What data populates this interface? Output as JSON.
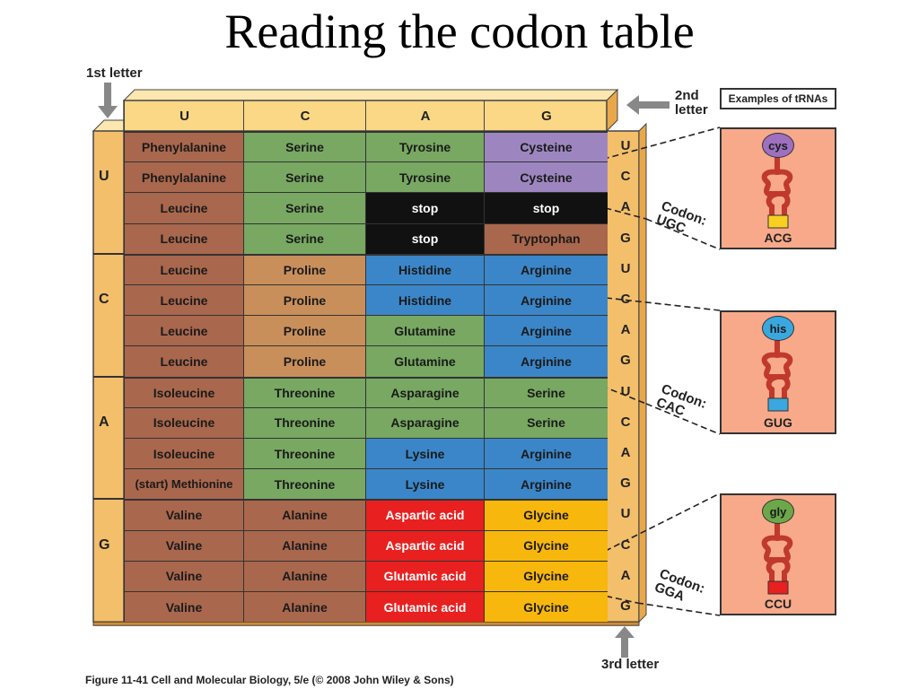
{
  "title": "Reading the codon table",
  "first_letter_label": "1st letter",
  "second_letter_label": "2nd\nletter",
  "third_letter_label": "3rd letter",
  "examples_label": "Examples of tRNAs",
  "caption": "Figure 11-41  Cell and Molecular Biology, 5/e (© 2008 John Wiley & Sons)",
  "second_letters": [
    "U",
    "C",
    "A",
    "G"
  ],
  "first_letters": [
    "U",
    "C",
    "A",
    "G"
  ],
  "third_letters": [
    "U",
    "C",
    "A",
    "G"
  ],
  "colors": {
    "brown": "#a9674d",
    "green": "#78a862",
    "tan": "#c98f5b",
    "blue": "#3b86c8",
    "purple": "#9d86c0",
    "black": "#111111",
    "red": "#e82020",
    "yellow": "#f8b70c",
    "header": "#fbd886",
    "side": "#f3bf6b"
  },
  "rows": [
    [
      {
        "t": "Phenylalanine",
        "c": "brown"
      },
      {
        "t": "Serine",
        "c": "green"
      },
      {
        "t": "Tyrosine",
        "c": "green"
      },
      {
        "t": "Cysteine",
        "c": "purple"
      }
    ],
    [
      {
        "t": "Phenylalanine",
        "c": "brown"
      },
      {
        "t": "Serine",
        "c": "green"
      },
      {
        "t": "Tyrosine",
        "c": "green"
      },
      {
        "t": "Cysteine",
        "c": "purple"
      }
    ],
    [
      {
        "t": "Leucine",
        "c": "brown"
      },
      {
        "t": "Serine",
        "c": "green"
      },
      {
        "t": "stop",
        "c": "black"
      },
      {
        "t": "stop",
        "c": "black"
      }
    ],
    [
      {
        "t": "Leucine",
        "c": "brown"
      },
      {
        "t": "Serine",
        "c": "green"
      },
      {
        "t": "stop",
        "c": "black"
      },
      {
        "t": "Tryptophan",
        "c": "brown"
      }
    ],
    [
      {
        "t": "Leucine",
        "c": "brown"
      },
      {
        "t": "Proline",
        "c": "tan"
      },
      {
        "t": "Histidine",
        "c": "blue"
      },
      {
        "t": "Arginine",
        "c": "blue"
      }
    ],
    [
      {
        "t": "Leucine",
        "c": "brown"
      },
      {
        "t": "Proline",
        "c": "tan"
      },
      {
        "t": "Histidine",
        "c": "blue"
      },
      {
        "t": "Arginine",
        "c": "blue"
      }
    ],
    [
      {
        "t": "Leucine",
        "c": "brown"
      },
      {
        "t": "Proline",
        "c": "tan"
      },
      {
        "t": "Glutamine",
        "c": "green"
      },
      {
        "t": "Arginine",
        "c": "blue"
      }
    ],
    [
      {
        "t": "Leucine",
        "c": "brown"
      },
      {
        "t": "Proline",
        "c": "tan"
      },
      {
        "t": "Glutamine",
        "c": "green"
      },
      {
        "t": "Arginine",
        "c": "blue"
      }
    ],
    [
      {
        "t": "Isoleucine",
        "c": "brown"
      },
      {
        "t": "Threonine",
        "c": "green"
      },
      {
        "t": "Asparagine",
        "c": "green"
      },
      {
        "t": "Serine",
        "c": "green"
      }
    ],
    [
      {
        "t": "Isoleucine",
        "c": "brown"
      },
      {
        "t": "Threonine",
        "c": "green"
      },
      {
        "t": "Asparagine",
        "c": "green"
      },
      {
        "t": "Serine",
        "c": "green"
      }
    ],
    [
      {
        "t": "Isoleucine",
        "c": "brown"
      },
      {
        "t": "Threonine",
        "c": "green"
      },
      {
        "t": "Lysine",
        "c": "blue"
      },
      {
        "t": "Arginine",
        "c": "blue"
      }
    ],
    [
      {
        "t": "(start) Methionine",
        "c": "brown"
      },
      {
        "t": "Threonine",
        "c": "green"
      },
      {
        "t": "Lysine",
        "c": "blue"
      },
      {
        "t": "Arginine",
        "c": "blue"
      }
    ],
    [
      {
        "t": "Valine",
        "c": "brown"
      },
      {
        "t": "Alanine",
        "c": "brown"
      },
      {
        "t": "Aspartic acid",
        "c": "red"
      },
      {
        "t": "Glycine",
        "c": "yellow"
      }
    ],
    [
      {
        "t": "Valine",
        "c": "brown"
      },
      {
        "t": "Alanine",
        "c": "brown"
      },
      {
        "t": "Aspartic acid",
        "c": "red"
      },
      {
        "t": "Glycine",
        "c": "yellow"
      }
    ],
    [
      {
        "t": "Valine",
        "c": "brown"
      },
      {
        "t": "Alanine",
        "c": "brown"
      },
      {
        "t": "Glutamic acid",
        "c": "red"
      },
      {
        "t": "Glycine",
        "c": "yellow"
      }
    ],
    [
      {
        "t": "Valine",
        "c": "brown"
      },
      {
        "t": "Alanine",
        "c": "brown"
      },
      {
        "t": "Glutamic acid",
        "c": "red"
      },
      {
        "t": "Glycine",
        "c": "yellow"
      }
    ]
  ],
  "trnas": [
    {
      "aa": "cys",
      "anticodon": "ACG",
      "codon_label": "Codon:\nUGC",
      "aa_color": "#9d70c0"
    },
    {
      "aa": "his",
      "anticodon": "GUG",
      "codon_label": "Codon:\nCAC",
      "aa_color": "#3aa8e0"
    },
    {
      "aa": "gly",
      "anticodon": "CCU",
      "codon_label": "Codon:\nGGA",
      "aa_color": "#6ca84a"
    }
  ]
}
